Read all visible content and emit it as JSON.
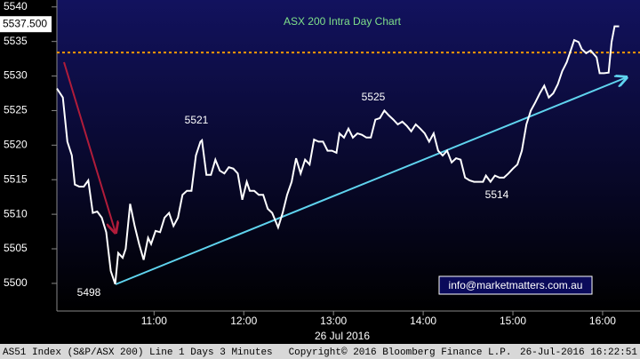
{
  "chart_data": {
    "type": "line",
    "title": "ASX 200 Intra Day Chart",
    "xlabel": "26 Jul 2016",
    "x": [
      595,
      599,
      602,
      605,
      607,
      610,
      613,
      616,
      619,
      622,
      625,
      628,
      631,
      634,
      636,
      639,
      641,
      644,
      647,
      650,
      653,
      656,
      658,
      661,
      664,
      667,
      670,
      673,
      676,
      679,
      682,
      685,
      688,
      691,
      692,
      695,
      698,
      701,
      704,
      707,
      710,
      713,
      716,
      719,
      722,
      724,
      727,
      730,
      733,
      736,
      739,
      743,
      746,
      749,
      752,
      755,
      758,
      761,
      764,
      767,
      770,
      773,
      776,
      779,
      782,
      784,
      787,
      790,
      793,
      796,
      799,
      802,
      805,
      808,
      811,
      814,
      817,
      820,
      823,
      826,
      829,
      832,
      835,
      838,
      841,
      844,
      847,
      850,
      853,
      856,
      859,
      862,
      865,
      868,
      871,
      874,
      877,
      880,
      882,
      885,
      888,
      891,
      894,
      897,
      900,
      903,
      906,
      909,
      912,
      915,
      918,
      921,
      924,
      927,
      930,
      933,
      936,
      939,
      941,
      944,
      946,
      949,
      952,
      956,
      958,
      961,
      964,
      966,
      968,
      971
    ],
    "series": [
      {
        "name": "AS51 Index",
        "color": "#ffffff",
        "values": [
          5528.2,
          5526.9,
          5520.5,
          5518.5,
          5514.3,
          5514.0,
          5514.0,
          5514.9,
          5510.2,
          5510.4,
          5509.5,
          5507.4,
          5501.8,
          5499.9,
          5504.4,
          5503.7,
          5505.0,
          5511.5,
          5508.3,
          5505.7,
          5503.4,
          5506.6,
          5505.7,
          5507.6,
          5507.4,
          5509.5,
          5510.2,
          5508.3,
          5509.5,
          5512.8,
          5513.4,
          5513.4,
          5518.5,
          5520.5,
          5520.7,
          5515.7,
          5515.7,
          5517.9,
          5516.3,
          5515.9,
          5516.8,
          5516.6,
          5515.9,
          5512.1,
          5514.7,
          5513.4,
          5513.4,
          5512.8,
          5512.8,
          5510.8,
          5510.2,
          5508.1,
          5510.2,
          5512.8,
          5514.7,
          5518.1,
          5515.9,
          5517.9,
          5517.2,
          5520.8,
          5520.5,
          5520.5,
          5519.2,
          5519.2,
          5518.9,
          5521.7,
          5521.1,
          5522.4,
          5521.1,
          5521.7,
          5521.5,
          5521.1,
          5521.1,
          5523.7,
          5523.9,
          5525.0,
          5524.3,
          5523.7,
          5523.0,
          5523.4,
          5522.8,
          5522.0,
          5523.0,
          5522.4,
          5521.7,
          5520.5,
          5521.7,
          5519.2,
          5518.5,
          5519.2,
          5517.5,
          5518.1,
          5517.9,
          5515.3,
          5514.9,
          5514.7,
          5514.7,
          5514.7,
          5515.6,
          5514.7,
          5515.6,
          5515.3,
          5515.3,
          5515.9,
          5516.6,
          5517.2,
          5519.2,
          5523.0,
          5525.0,
          5526.2,
          5527.5,
          5528.6,
          5526.9,
          5527.5,
          5528.8,
          5530.7,
          5532.0,
          5533.9,
          5535.2,
          5534.9,
          5533.9,
          5533.3,
          5533.7,
          5532.7,
          5530.4,
          5530.4,
          5530.5,
          5534.9,
          5537.2,
          5537.2
        ]
      }
    ],
    "xlim": [
      595,
      985
    ],
    "xticks": [
      {
        "value": 660,
        "label": "11:00"
      },
      {
        "value": 720,
        "label": "12:00"
      },
      {
        "value": 780,
        "label": "13:00"
      },
      {
        "value": 840,
        "label": "14:00"
      },
      {
        "value": 900,
        "label": "15:00"
      },
      {
        "value": 960,
        "label": "16:00"
      }
    ],
    "ylim": [
      5496,
      5541
    ],
    "yticks": [
      5500,
      5505,
      5510,
      5515,
      5520,
      5525,
      5530,
      5535,
      5540
    ],
    "grid": false,
    "reference_line": {
      "value": 5533.4,
      "color": "#ff9900"
    },
    "last_price": {
      "value": 5537.5,
      "label": "5537.500"
    },
    "annotations": [
      "5498",
      "5521",
      "5525",
      "5514"
    ],
    "watermark": "info@marketmatters.com.au",
    "footer": [
      "AS51 Index (S&P/ASX 200) Line 1 Days 3 Minutes",
      "Copyright© 2016 Bloomberg Finance L.P.",
      "26-Jul-2016 16:22:51"
    ]
  }
}
